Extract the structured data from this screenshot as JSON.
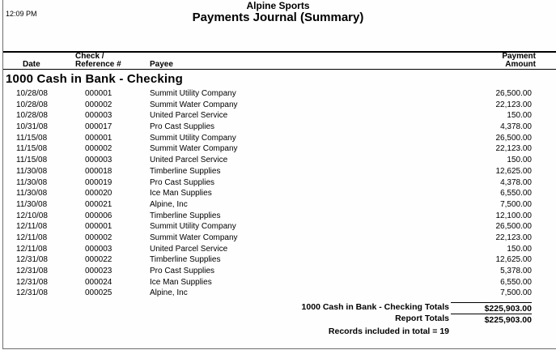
{
  "header": {
    "time": "12:09 PM",
    "company": "Alpine Sports",
    "title": "Payments Journal (Summary)"
  },
  "columns": {
    "date": "Date",
    "check_line1": "Check /",
    "check_line2": "Reference #",
    "payee": "Payee",
    "amount_line1": "Payment",
    "amount_line2": "Amount"
  },
  "section": {
    "title": "1000 Cash in Bank - Checking"
  },
  "table": {
    "rows": [
      {
        "date": "10/28/08",
        "check": "000001",
        "payee": "Summit Utility Company",
        "amount": "26,500.00"
      },
      {
        "date": "10/28/08",
        "check": "000002",
        "payee": "Summit Water Company",
        "amount": "22,123.00"
      },
      {
        "date": "10/28/08",
        "check": "000003",
        "payee": "United Parcel Service",
        "amount": "150.00"
      },
      {
        "date": "10/31/08",
        "check": "000017",
        "payee": "Pro Cast Supplies",
        "amount": "4,378.00"
      },
      {
        "date": "11/15/08",
        "check": "000001",
        "payee": "Summit Utility Company",
        "amount": "26,500.00"
      },
      {
        "date": "11/15/08",
        "check": "000002",
        "payee": "Summit Water Company",
        "amount": "22,123.00"
      },
      {
        "date": "11/15/08",
        "check": "000003",
        "payee": "United Parcel Service",
        "amount": "150.00"
      },
      {
        "date": "11/30/08",
        "check": "000018",
        "payee": "Timberline Supplies",
        "amount": "12,625.00"
      },
      {
        "date": "11/30/08",
        "check": "000019",
        "payee": "Pro Cast Supplies",
        "amount": "4,378.00"
      },
      {
        "date": "11/30/08",
        "check": "000020",
        "payee": "Ice Man Supplies",
        "amount": "6,550.00"
      },
      {
        "date": "11/30/08",
        "check": "000021",
        "payee": "Alpine, Inc",
        "amount": "7,500.00"
      },
      {
        "date": "12/10/08",
        "check": "000006",
        "payee": "Timberline Supplies",
        "amount": "12,100.00"
      },
      {
        "date": "12/11/08",
        "check": "000001",
        "payee": "Summit Utility Company",
        "amount": "26,500.00"
      },
      {
        "date": "12/11/08",
        "check": "000002",
        "payee": "Summit Water Company",
        "amount": "22,123.00"
      },
      {
        "date": "12/11/08",
        "check": "000003",
        "payee": "United Parcel Service",
        "amount": "150.00"
      },
      {
        "date": "12/31/08",
        "check": "000022",
        "payee": "Timberline Supplies",
        "amount": "12,625.00"
      },
      {
        "date": "12/31/08",
        "check": "000023",
        "payee": "Pro Cast Supplies",
        "amount": "5,378.00"
      },
      {
        "date": "12/31/08",
        "check": "000024",
        "payee": "Ice Man Supplies",
        "amount": "6,550.00"
      },
      {
        "date": "12/31/08",
        "check": "000025",
        "payee": "Alpine, Inc",
        "amount": "7,500.00"
      }
    ]
  },
  "totals": {
    "section_label": "1000 Cash in Bank - Checking Totals",
    "section_amount": "$225,903.00",
    "report_label": "Report Totals",
    "report_amount": "$225,903.00",
    "records_note": "Records included in total = 19"
  },
  "colors": {
    "window_edge": "#6e6e6e",
    "rule": "#000000",
    "background": "#fefefe",
    "text": "#000000"
  }
}
